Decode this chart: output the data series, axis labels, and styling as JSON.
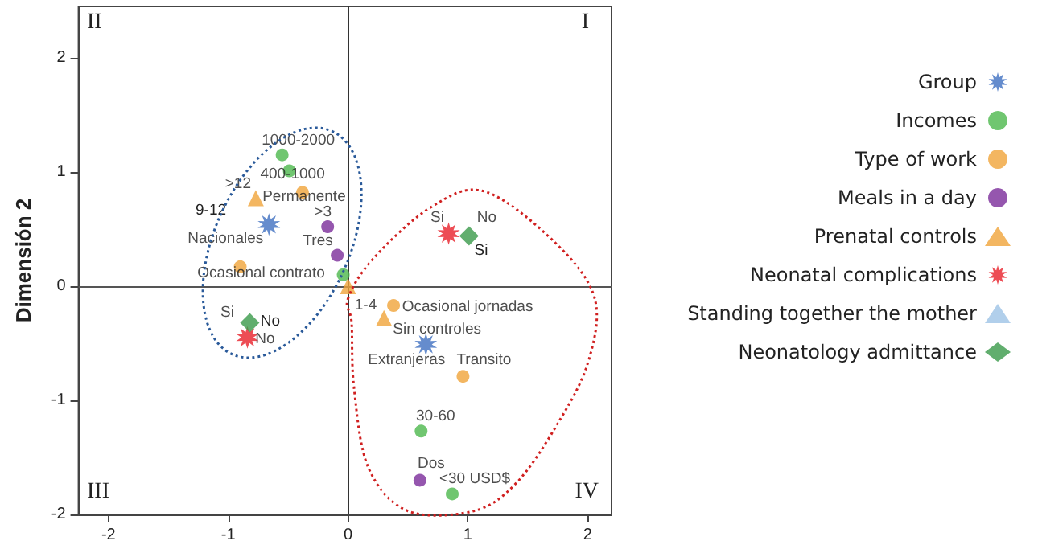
{
  "chart_data": {
    "type": "scatter",
    "ylabel": "Dimensión 2",
    "xlim": [
      -2.25,
      2.2
    ],
    "ylim": [
      -2.0,
      2.45
    ],
    "xticks": [
      -2,
      -1,
      0,
      1,
      2
    ],
    "yticks": [
      -2,
      -1,
      0,
      1,
      2
    ],
    "grid": false,
    "legend": "right",
    "series": [
      {
        "name": "Group",
        "color": "#3f6fc0",
        "marker": "star",
        "x": [
          -0.66,
          0.65
        ],
        "values": [
          0.54,
          -0.51
        ],
        "value_labels": [
          "Nacionales",
          "Extranjeras"
        ]
      },
      {
        "name": "Incomes",
        "color": "#4cb84c",
        "marker": "circle",
        "x": [
          -0.55,
          -0.49,
          -0.04,
          0.61,
          0.87
        ],
        "values": [
          1.15,
          1.01,
          0.1,
          -1.27,
          -1.82
        ],
        "value_labels": [
          "1000-2000",
          "400-1000",
          null,
          "30-60",
          "<30 USD$"
        ]
      },
      {
        "name": "Type of work",
        "color": "#f0a43a",
        "marker": "circle",
        "x": [
          -0.38,
          -0.9,
          0.38,
          0.96
        ],
        "values": [
          0.82,
          0.17,
          -0.17,
          -0.79
        ],
        "value_labels": [
          "Permanente",
          "Ocasional contrato",
          "Ocasional jornadas",
          "Transito"
        ]
      },
      {
        "name": "Meals in a day",
        "color": "#7a2c9a",
        "marker": "circle",
        "x": [
          -0.17,
          -0.09,
          0.6
        ],
        "values": [
          0.52,
          0.27,
          -1.7
        ],
        "value_labels": [
          ">3",
          "Tres",
          "Dos"
        ]
      },
      {
        "name": "Prenatal controls",
        "color": "#f0a43a",
        "marker": "triangle",
        "x": [
          -0.77,
          0.0,
          0.3
        ],
        "values": [
          0.77,
          0.0,
          -0.28
        ],
        "value_labels": [
          ">12",
          "1-4",
          "Sin controles"
        ]
      },
      {
        "name": "Neonatal complications",
        "color": "#e8202a",
        "marker": "star",
        "x": [
          0.84,
          -0.84
        ],
        "values": [
          0.46,
          -0.45
        ],
        "value_labels": [
          "Si",
          "No"
        ]
      },
      {
        "name": "Standing together the mother",
        "color": "#9dc3e6",
        "marker": "triangle"
      },
      {
        "name": "Neonatology admittance",
        "color": "#3a9a4a",
        "marker": "diamond",
        "x": [
          1.01,
          -0.82
        ],
        "values": [
          0.44,
          -0.32
        ],
        "value_labels": [
          "No",
          "Si"
        ]
      }
    ],
    "ref_lines": [
      {
        "axis": "x",
        "value": 0,
        "color": "#333333"
      },
      {
        "axis": "y",
        "value": 0,
        "color": "#555555"
      }
    ],
    "annotations": [
      "II",
      "I",
      "III",
      "IV",
      "9-12",
      "No",
      "Si"
    ]
  }
}
